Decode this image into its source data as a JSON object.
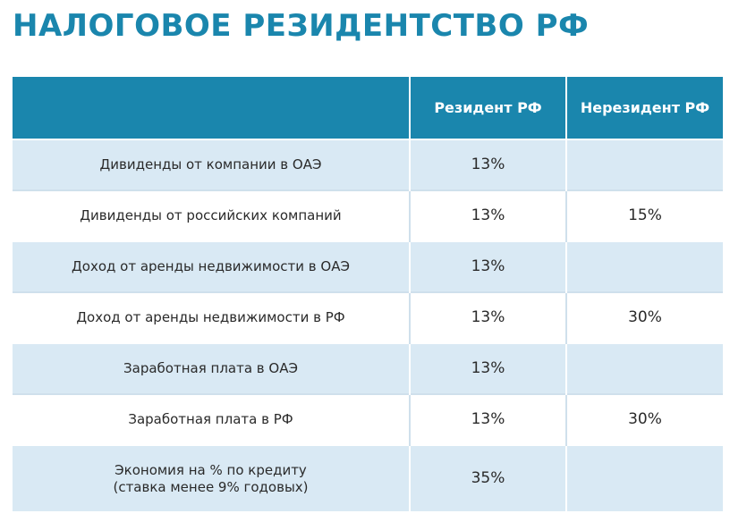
{
  "title": "НАЛОГОВОЕ РЕЗИДЕНТСТВО РФ",
  "table": {
    "headers": [
      "",
      "Резидент РФ",
      "Нерезидент РФ"
    ],
    "rows": [
      {
        "income": [
          "Дивиденды от компании в ОАЭ"
        ],
        "resident": "13%",
        "nonresident": ""
      },
      {
        "income": [
          "Дивиденды от российских компаний"
        ],
        "resident": "13%",
        "nonresident": "15%"
      },
      {
        "income": [
          "Доход от аренды недвижимости в ОАЭ"
        ],
        "resident": "13%",
        "nonresident": ""
      },
      {
        "income": [
          "Доход от аренды недвижимости в РФ"
        ],
        "resident": "13%",
        "nonresident": "30%"
      },
      {
        "income": [
          "Заработная плата в ОАЭ"
        ],
        "resident": "13%",
        "nonresident": ""
      },
      {
        "income": [
          "Заработная плата в РФ"
        ],
        "resident": "13%",
        "nonresident": "30%"
      },
      {
        "income": [
          "Экономия на % по кредиту",
          "(ставка менее 9% годовых)"
        ],
        "resident": "35%",
        "nonresident": ""
      }
    ]
  },
  "colors": {
    "accent": "#1a86ad",
    "row_tint": "#d9e9f4"
  }
}
